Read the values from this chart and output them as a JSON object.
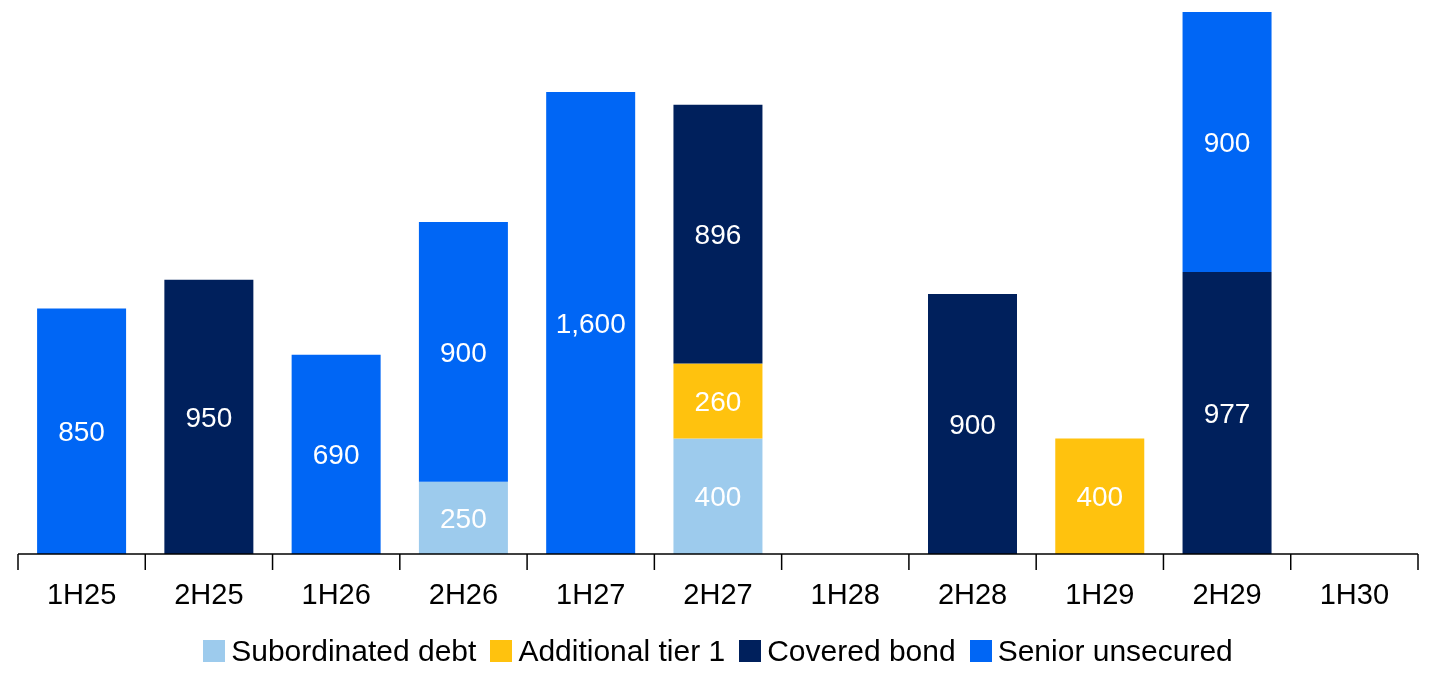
{
  "chart_data": {
    "type": "bar",
    "stacked": true,
    "legend": "bottom",
    "categories": [
      "1H25",
      "2H25",
      "1H26",
      "2H26",
      "1H27",
      "2H27",
      "1H28",
      "2H28",
      "1H29",
      "2H29",
      "1H30"
    ],
    "series": [
      {
        "name": "Subordinated debt",
        "color": "#9dcbed",
        "values": [
          null,
          null,
          null,
          250,
          null,
          400,
          null,
          null,
          null,
          null,
          null
        ],
        "value_labels": [
          null,
          null,
          null,
          "250",
          null,
          "400",
          null,
          null,
          null,
          null,
          null
        ]
      },
      {
        "name": "Additional tier 1",
        "color": "#ffc20e",
        "values": [
          null,
          null,
          null,
          null,
          null,
          260,
          null,
          null,
          400,
          null,
          null
        ],
        "value_labels": [
          null,
          null,
          null,
          null,
          null,
          "260",
          null,
          null,
          "400",
          null,
          null
        ]
      },
      {
        "name": "Covered bond",
        "color": "#00205c",
        "values": [
          null,
          950,
          null,
          null,
          null,
          896,
          null,
          900,
          null,
          977,
          null
        ],
        "value_labels": [
          null,
          "950",
          null,
          null,
          null,
          "896",
          null,
          "900",
          null,
          "977",
          null
        ]
      },
      {
        "name": "Senior unsecured",
        "color": "#0066f5",
        "values": [
          850,
          null,
          690,
          900,
          1600,
          null,
          null,
          null,
          null,
          900,
          null
        ],
        "value_labels": [
          "850",
          null,
          "690",
          "900",
          "1,600",
          null,
          null,
          null,
          null,
          "900",
          null
        ]
      }
    ]
  }
}
